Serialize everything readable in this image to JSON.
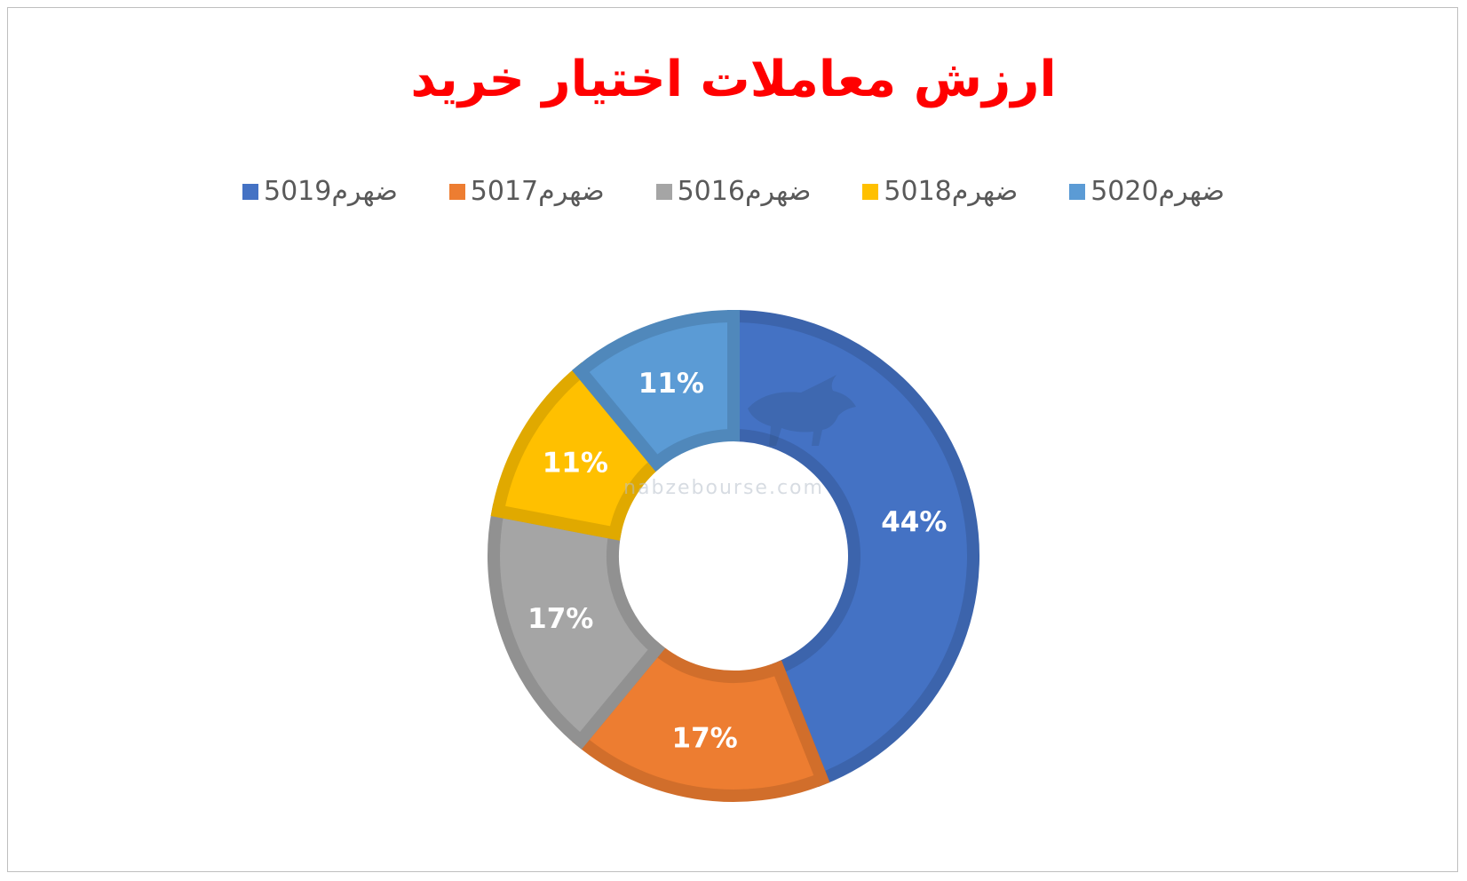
{
  "chart_data": {
    "type": "pie",
    "title": "ارزش معاملات اختیار خرید",
    "donut": true,
    "legend_position": "top",
    "slices": [
      {
        "name": "ضهرم5019",
        "value": 44,
        "label": "44%",
        "color": "#4472C4"
      },
      {
        "name": "ضهرم5017",
        "value": 17,
        "label": "17%",
        "color": "#ED7D31"
      },
      {
        "name": "ضهرم5016",
        "value": 17,
        "label": "17%",
        "color": "#A5A5A5"
      },
      {
        "name": "ضهرم5018",
        "value": 11,
        "label": "11%",
        "color": "#FFC000"
      },
      {
        "name": "ضهرم5020",
        "value": 11,
        "label": "11%",
        "color": "#5B9BD5"
      }
    ]
  },
  "watermark": {
    "text": "nabzebourse.com"
  }
}
